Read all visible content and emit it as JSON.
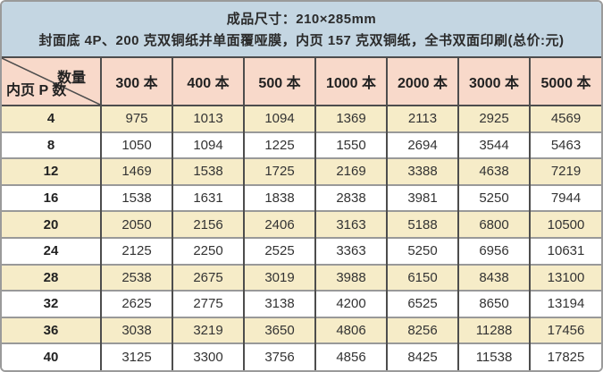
{
  "banner": {
    "line1": "成品尺寸：210×285mm",
    "line2": "封面底 4P、200 克双铜纸并单面覆哑膜，内页 157 克双铜纸，全书双面印刷(总价:元)"
  },
  "table": {
    "corner": {
      "top_right": "数量",
      "bottom_left": "内页 P 数"
    },
    "columns": [
      "300 本",
      "400 本",
      "500 本",
      "1000 本",
      "2000 本",
      "3000 本",
      "5000 本"
    ],
    "rows": [
      {
        "pages": "4",
        "prices": [
          "975",
          "1013",
          "1094",
          "1369",
          "2113",
          "2925",
          "4569"
        ]
      },
      {
        "pages": "8",
        "prices": [
          "1050",
          "1094",
          "1225",
          "1550",
          "2694",
          "3544",
          "5463"
        ]
      },
      {
        "pages": "12",
        "prices": [
          "1469",
          "1538",
          "1725",
          "2169",
          "3388",
          "4638",
          "7219"
        ]
      },
      {
        "pages": "16",
        "prices": [
          "1538",
          "1631",
          "1838",
          "2838",
          "3981",
          "5250",
          "7944"
        ]
      },
      {
        "pages": "20",
        "prices": [
          "2050",
          "2156",
          "2406",
          "3163",
          "5188",
          "6800",
          "10500"
        ]
      },
      {
        "pages": "24",
        "prices": [
          "2125",
          "2250",
          "2525",
          "3363",
          "5250",
          "6956",
          "10631"
        ]
      },
      {
        "pages": "28",
        "prices": [
          "2538",
          "2675",
          "3019",
          "3988",
          "6150",
          "8438",
          "13100"
        ]
      },
      {
        "pages": "32",
        "prices": [
          "2625",
          "2775",
          "3138",
          "4200",
          "6525",
          "8650",
          "13194"
        ]
      },
      {
        "pages": "36",
        "prices": [
          "3038",
          "3219",
          "3650",
          "4806",
          "8256",
          "11288",
          "17456"
        ]
      },
      {
        "pages": "40",
        "prices": [
          "3125",
          "3300",
          "3756",
          "4856",
          "8425",
          "11538",
          "17825"
        ]
      }
    ]
  },
  "colors": {
    "banner_bg": "#c4d6e2",
    "header_bg": "#f8d9ca",
    "row_alt_bg": "#f6ecc8",
    "row_bg": "#ffffff",
    "border_dark": "#4d4d4d",
    "border_light": "#999999",
    "text": "#333333",
    "outer_border": "#9a9a9a"
  }
}
